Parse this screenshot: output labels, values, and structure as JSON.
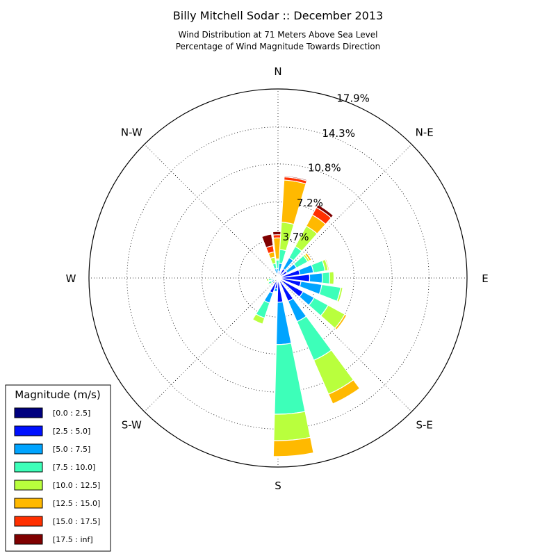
{
  "chart_data": {
    "type": "windrose",
    "title": "Billy Mitchell Sodar :: December 2013",
    "subtitle_lines": [
      "Wind Distribution at 71 Meters Above Sea Level",
      "Percentage of Wind Magnitude Towards Direction"
    ],
    "direction_labels": [
      "N",
      "N-E",
      "E",
      "S-E",
      "S",
      "S-W",
      "W",
      "N-W"
    ],
    "radial_ticks": [
      3.7,
      7.2,
      10.8,
      14.3,
      17.9
    ],
    "radial_tick_labels": [
      "3.7%",
      "7.2%",
      "10.8%",
      "14.3%",
      "17.9%"
    ],
    "r_max": 17.9,
    "grid": true,
    "sectors": [
      {
        "direction": 0,
        "values": [
          0.2,
          0.2,
          0.5,
          0.8,
          0.1,
          2.0,
          0.3,
          0.3
        ]
      },
      {
        "direction": 10,
        "values": [
          0.2,
          0.4,
          0.8,
          1.3,
          2.6,
          4.0,
          0.3,
          0.1
        ]
      },
      {
        "direction": 35,
        "values": [
          0.2,
          0.8,
          1.2,
          1.2,
          2.2,
          1.2,
          0.8,
          0.3
        ]
      },
      {
        "direction": 55,
        "values": [
          0.2,
          0.8,
          1.0,
          1.2,
          0.2,
          0.2,
          0,
          0
        ]
      },
      {
        "direction": 75,
        "values": [
          0.2,
          1.9,
          1.3,
          1.1,
          0.3,
          0.1,
          0,
          0
        ]
      },
      {
        "direction": 90,
        "values": [
          0.2,
          2.8,
          1.2,
          0.7,
          0.4,
          0,
          0,
          0
        ]
      },
      {
        "direction": 105,
        "values": [
          0.2,
          2.0,
          2.0,
          1.8,
          0.2,
          0,
          0,
          0
        ]
      },
      {
        "direction": 125,
        "values": [
          0.2,
          2.5,
          1.2,
          1.5,
          1.8,
          0.2,
          0,
          0
        ]
      },
      {
        "direction": 150,
        "values": [
          0.2,
          2.2,
          2.1,
          4.0,
          3.5,
          1.0,
          0,
          0
        ]
      },
      {
        "direction": 175,
        "values": [
          0.2,
          2.1,
          4.0,
          6.6,
          2.5,
          1.5,
          0,
          0
        ]
      },
      {
        "direction": 190,
        "values": [
          0.2,
          0.8,
          0.3,
          0,
          0,
          0,
          0,
          0
        ]
      },
      {
        "direction": 205,
        "values": [
          0.2,
          1.3,
          1.0,
          1.5,
          0.6,
          0,
          0,
          0
        ]
      },
      {
        "direction": 240,
        "values": [
          0.1,
          0.3,
          0.3,
          0.3,
          0.1,
          0,
          0,
          0
        ]
      },
      {
        "direction": 260,
        "values": [
          0.1,
          0.3,
          0.2,
          0.3,
          0.2,
          0,
          0,
          0
        ]
      },
      {
        "direction": 345,
        "values": [
          0.2,
          0.2,
          0.5,
          0.5,
          0.6,
          0.5,
          0.6,
          1.1
        ]
      }
    ],
    "legend": {
      "title": "Magnitude (m/s)",
      "placement": "lower-left",
      "entries": [
        {
          "label": "[0.0 : 2.5]",
          "color": "#00007f"
        },
        {
          "label": "[2.5 : 5.0]",
          "color": "#0010ff"
        },
        {
          "label": "[5.0 : 7.5]",
          "color": "#00a4ff"
        },
        {
          "label": "[7.5 : 10.0]",
          "color": "#3dffb9"
        },
        {
          "label": "[10.0 : 12.5]",
          "color": "#b9ff3d"
        },
        {
          "label": "[12.5 : 15.0]",
          "color": "#ffb900"
        },
        {
          "label": "[15.0 : 17.5]",
          "color": "#ff3000"
        },
        {
          "label": "[17.5 : inf]",
          "color": "#7f0000"
        }
      ]
    }
  }
}
